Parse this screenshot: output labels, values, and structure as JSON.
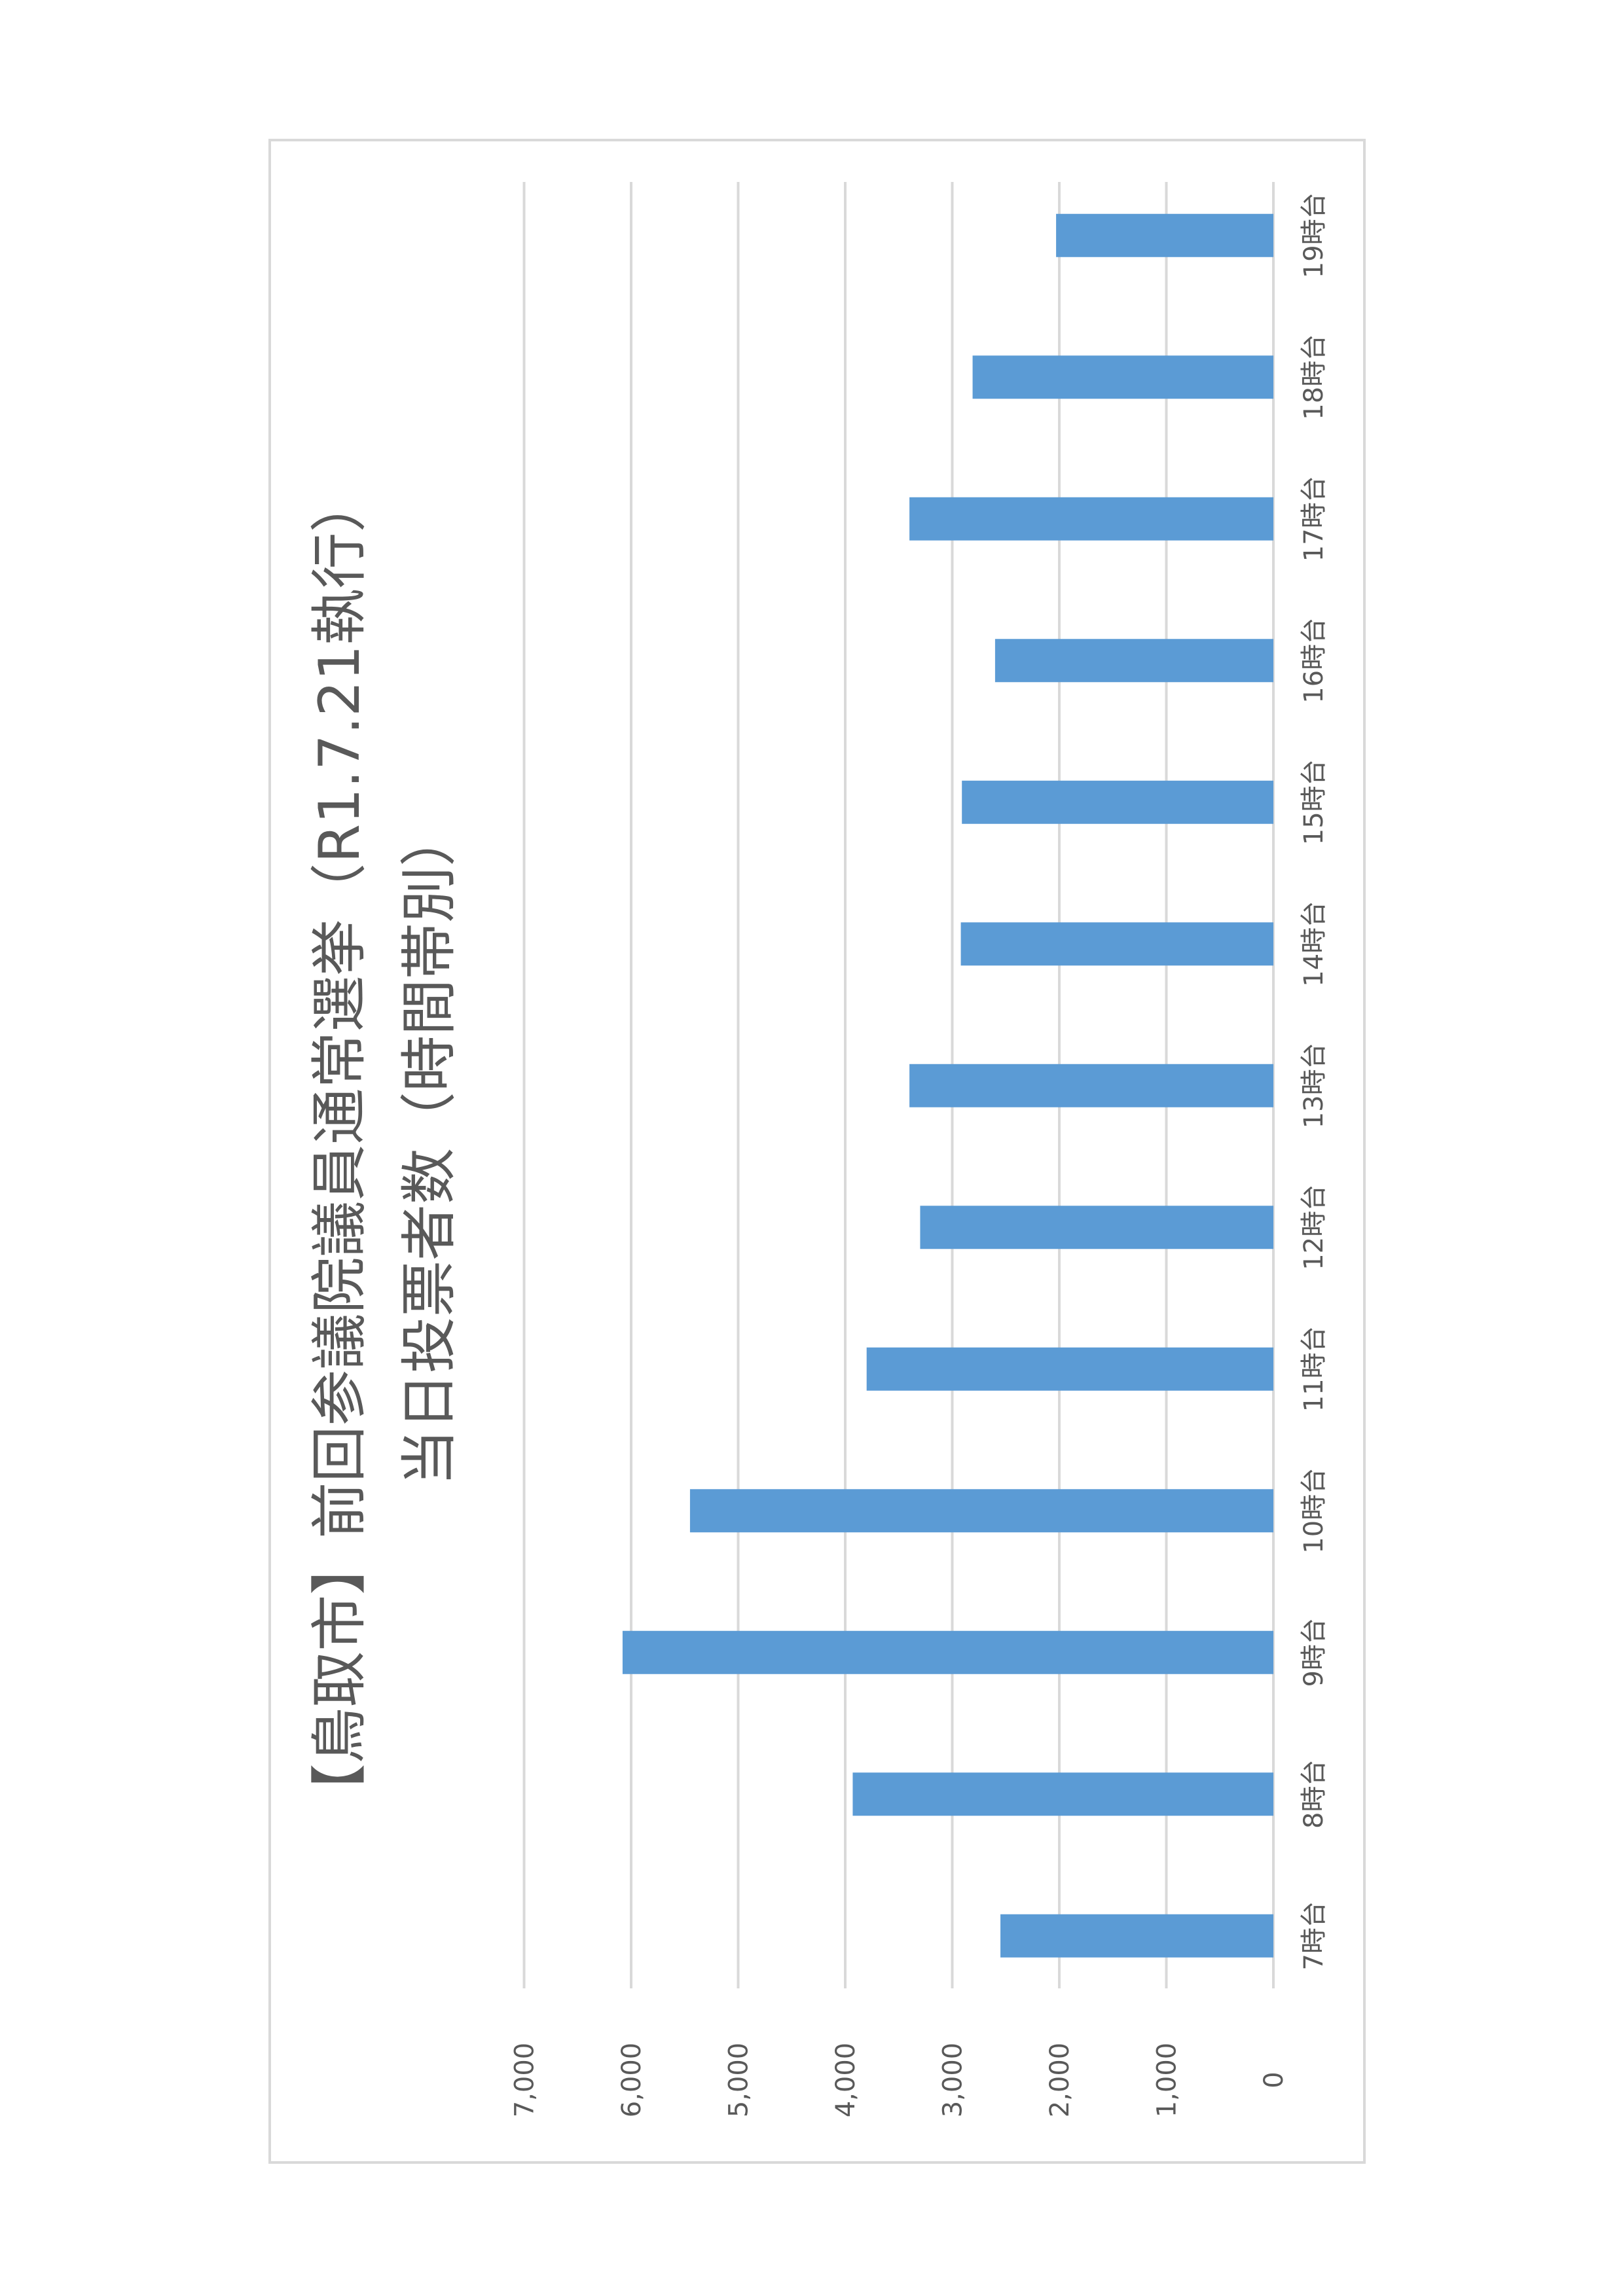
{
  "chart_data": {
    "type": "bar",
    "orientation": "horizontal",
    "title_lines": [
      "【鳥取市】前回参議院議員通常選挙（R1.7.21執行）",
      "当日投票者数（時間帯別）"
    ],
    "categories": [
      "19時台",
      "18時台",
      "17時台",
      "16時台",
      "15時台",
      "14時台",
      "13時台",
      "12時台",
      "11時台",
      "10時台",
      "9時台",
      "8時台",
      "7時台"
    ],
    "values": [
      2030,
      2810,
      3400,
      2600,
      2910,
      2920,
      3400,
      3300,
      3800,
      5450,
      6080,
      3930,
      2550
    ],
    "value_ticks": [
      "0",
      "1,000",
      "2,000",
      "3,000",
      "4,000",
      "5,000",
      "6,000",
      "7,000"
    ],
    "xlim": [
      0,
      7000
    ],
    "grid": true,
    "legend": "none",
    "bar_color": "#5b9bd5"
  }
}
